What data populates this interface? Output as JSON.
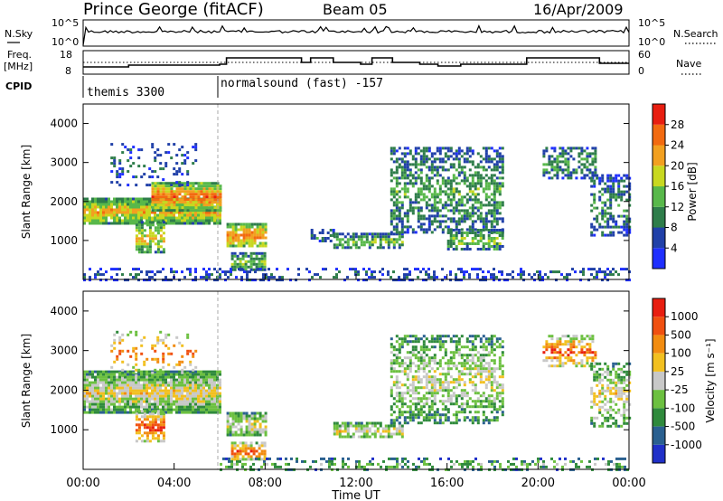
{
  "header": {
    "station": "Prince George (fitACF)",
    "beam": "Beam 05",
    "date": "16/Apr/2009"
  },
  "top_panel": {
    "left_label": "N.Sky",
    "right_label": "N.Search",
    "y_ticks_left": [
      "10^5",
      "10^0"
    ],
    "y_ticks_right": [
      "10^5",
      "10^0"
    ]
  },
  "freq_panel": {
    "label_line1": "Freq.",
    "label_line2": "[MHz]",
    "right_label": "Nave",
    "y_ticks_left": [
      "18",
      "8"
    ],
    "y_ticks_right": [
      "60",
      "0"
    ]
  },
  "cpid": {
    "label": "CPID",
    "modes": [
      "themis 3300",
      "normalsound (fast) -157"
    ]
  },
  "chart_data": [
    {
      "type": "heatmap",
      "panel": "power",
      "ylabel": "Slant Range [km]",
      "xlabel": "",
      "x_range": [
        "00:00",
        "24:00"
      ],
      "ylim": [
        0,
        4500
      ],
      "y_ticks": [
        1000,
        2000,
        3000,
        4000
      ],
      "colorbar": {
        "label": "Power [dB]",
        "ticks": [
          "4",
          "8",
          "12",
          "16",
          "20",
          "24",
          "28"
        ],
        "colors": [
          "#1f2fff",
          "#2040a8",
          "#2e7d4a",
          "#58b84a",
          "#c8d820",
          "#f2a020",
          "#f26a10",
          "#e81e10"
        ]
      },
      "regions": [
        {
          "t0": 0.0,
          "t1": 6.0,
          "r0": 1450,
          "r1": 2100,
          "level": 0.6,
          "density": 0.95
        },
        {
          "t0": 3.0,
          "t1": 6.0,
          "r0": 1800,
          "r1": 2500,
          "level": 0.72,
          "density": 0.95
        },
        {
          "t0": 2.3,
          "t1": 3.6,
          "r0": 700,
          "r1": 1500,
          "level": 0.55,
          "density": 0.7
        },
        {
          "t0": 1.2,
          "t1": 5.0,
          "r0": 2400,
          "r1": 3500,
          "level": 0.2,
          "density": 0.22
        },
        {
          "t0": 6.3,
          "t1": 8.0,
          "r0": 850,
          "r1": 1450,
          "level": 0.7,
          "density": 0.85
        },
        {
          "t0": 6.5,
          "t1": 8.0,
          "r0": 250,
          "r1": 700,
          "level": 0.45,
          "density": 0.8
        },
        {
          "t0": 10.0,
          "t1": 11.0,
          "r0": 1000,
          "r1": 1300,
          "level": 0.3,
          "density": 0.5
        },
        {
          "t0": 11.0,
          "t1": 14.0,
          "r0": 800,
          "r1": 1200,
          "level": 0.4,
          "density": 0.7
        },
        {
          "t0": 13.5,
          "t1": 18.5,
          "r0": 1200,
          "r1": 3400,
          "level": 0.35,
          "density": 0.55
        },
        {
          "t0": 16.0,
          "t1": 18.5,
          "r0": 800,
          "r1": 1300,
          "level": 0.45,
          "density": 0.7
        },
        {
          "t0": 20.2,
          "t1": 22.5,
          "r0": 2600,
          "r1": 3400,
          "level": 0.35,
          "density": 0.55
        },
        {
          "t0": 22.3,
          "t1": 24.0,
          "r0": 1100,
          "r1": 2700,
          "level": 0.3,
          "density": 0.5
        },
        {
          "t0": 0.0,
          "t1": 24.0,
          "r0": 0,
          "r1": 300,
          "level": 0.2,
          "density": 0.35
        }
      ]
    },
    {
      "type": "heatmap",
      "panel": "velocity",
      "ylabel": "Slant Range [km]",
      "xlabel": "Time UT",
      "x_ticks": [
        "00:00",
        "04:00",
        "08:00",
        "12:00",
        "16:00",
        "20:00",
        "00:00"
      ],
      "ylim": [
        0,
        4500
      ],
      "y_ticks": [
        1000,
        2000,
        3000,
        4000
      ],
      "colorbar": {
        "label": "Velocity [m s⁻¹]",
        "ticks": [
          "1000",
          "500",
          "100",
          "25",
          "-25",
          "-100",
          "-500",
          "-1000"
        ],
        "colors": [
          "#2030c8",
          "#2a6090",
          "#2f8a3c",
          "#6cc040",
          "#c8c8c8",
          "#f2c020",
          "#f28c10",
          "#f05010",
          "#e81e10"
        ]
      },
      "regions": [
        {
          "t0": 0.0,
          "t1": 6.0,
          "r0": 1450,
          "r1": 2500,
          "level": 0.5,
          "density": 0.95
        },
        {
          "t0": 2.3,
          "t1": 3.6,
          "r0": 700,
          "r1": 1500,
          "level": 0.78,
          "density": 0.7
        },
        {
          "t0": 1.2,
          "t1": 5.0,
          "r0": 2400,
          "r1": 3500,
          "level": 0.7,
          "density": 0.2
        },
        {
          "t0": 6.3,
          "t1": 8.0,
          "r0": 850,
          "r1": 1450,
          "level": 0.5,
          "density": 0.85
        },
        {
          "t0": 6.5,
          "t1": 8.0,
          "r0": 250,
          "r1": 700,
          "level": 0.75,
          "density": 0.8
        },
        {
          "t0": 11.0,
          "t1": 14.0,
          "r0": 800,
          "r1": 1200,
          "level": 0.5,
          "density": 0.7
        },
        {
          "t0": 13.5,
          "t1": 18.5,
          "r0": 1200,
          "r1": 3400,
          "level": 0.45,
          "density": 0.55
        },
        {
          "t0": 20.2,
          "t1": 22.5,
          "r0": 2600,
          "r1": 3400,
          "level": 0.75,
          "density": 0.55
        },
        {
          "t0": 22.3,
          "t1": 24.0,
          "r0": 1100,
          "r1": 2700,
          "level": 0.5,
          "density": 0.5
        },
        {
          "t0": 6.0,
          "t1": 24.0,
          "r0": 0,
          "r1": 300,
          "level": 0.35,
          "density": 0.35
        }
      ]
    }
  ]
}
